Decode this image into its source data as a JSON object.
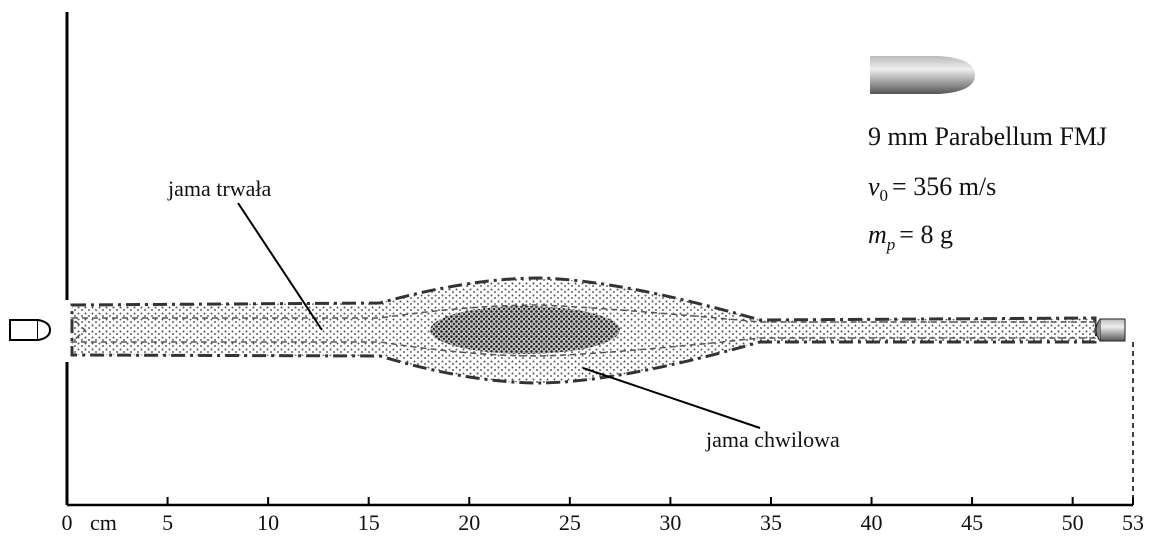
{
  "specs": {
    "name": "9 mm Parabellum FMJ",
    "velocity": {
      "symbol": "v",
      "subscript": "0",
      "value": "= 356 m/s"
    },
    "mass": {
      "symbol": "m",
      "subscript": "p",
      "value": "= 8 g"
    }
  },
  "labels": {
    "permanent": "jama trwała",
    "temporary": "jama chwilowa"
  },
  "axis": {
    "unit": "cm",
    "ticks": [
      0,
      5,
      10,
      15,
      20,
      25,
      30,
      35,
      40,
      45,
      50,
      53
    ]
  }
}
